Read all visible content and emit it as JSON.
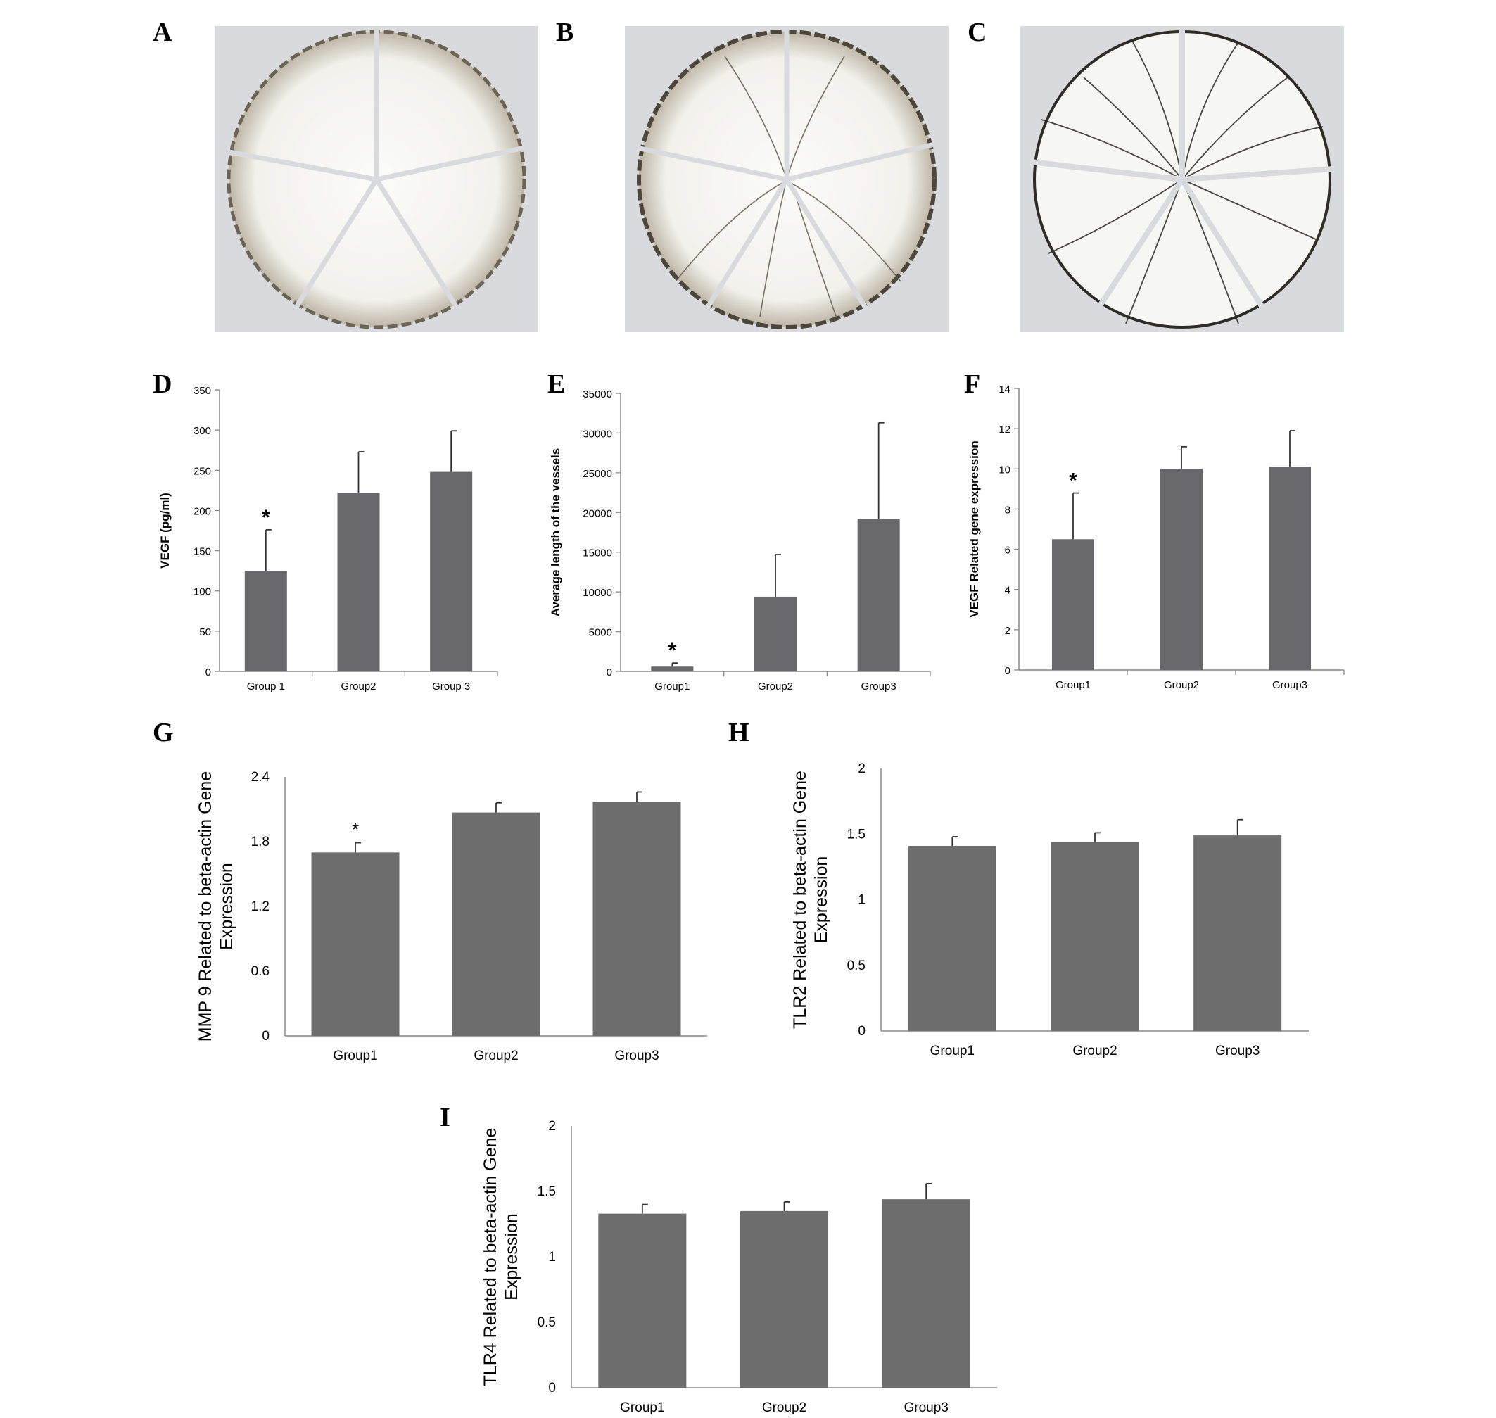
{
  "panels": {
    "A": {
      "letter": "A"
    },
    "B": {
      "letter": "B"
    },
    "C": {
      "letter": "C"
    }
  },
  "chart_data": [
    {
      "id": "D",
      "letter": "D",
      "type": "bar",
      "categories": [
        "Group 1",
        "Group2",
        "Group 3"
      ],
      "values": [
        125,
        222,
        248
      ],
      "errors": [
        51,
        51,
        51
      ],
      "significance": [
        "*",
        "",
        ""
      ],
      "ylabel": "VEGF (pg/ml)",
      "ylim": [
        0,
        350
      ],
      "yticks": [
        0,
        50,
        100,
        150,
        200,
        250,
        300,
        350
      ],
      "tick_labels": [
        "0",
        "50",
        "100",
        "150",
        "200",
        "250",
        "300",
        "350"
      ],
      "bar_color": "#68676c",
      "grid": false
    },
    {
      "id": "E",
      "letter": "E",
      "type": "bar",
      "categories": [
        "Group1",
        "Group2",
        "Group3"
      ],
      "values": [
        600,
        9400,
        19200
      ],
      "errors": [
        450,
        5300,
        12100
      ],
      "significance": [
        "*",
        "",
        ""
      ],
      "ylabel": "Average length of the vessels",
      "ylim": [
        0,
        35000
      ],
      "yticks": [
        0,
        5000,
        10000,
        15000,
        20000,
        25000,
        30000,
        35000
      ],
      "tick_labels": [
        "0",
        "5000",
        "10000",
        "15000",
        "20000",
        "25000",
        "30000",
        "35000"
      ],
      "bar_color": "#68676c",
      "grid": false
    },
    {
      "id": "F",
      "letter": "F",
      "type": "bar",
      "categories": [
        "Group1",
        "Group2",
        "Group3"
      ],
      "values": [
        6.5,
        10.0,
        10.1
      ],
      "errors": [
        2.3,
        1.1,
        1.8
      ],
      "significance": [
        "*",
        "",
        ""
      ],
      "ylabel": "VEGF Related gene expression",
      "ylim": [
        0,
        14
      ],
      "yticks": [
        0,
        2,
        4,
        6,
        8,
        10,
        12,
        14
      ],
      "tick_labels": [
        "0",
        "2",
        "4",
        "6",
        "8",
        "10",
        "12",
        "14"
      ],
      "bar_color": "#68676c",
      "grid": false
    },
    {
      "id": "G",
      "letter": "G",
      "type": "bar",
      "categories": [
        "Group1",
        "Group2",
        "Group3"
      ],
      "values": [
        1.7,
        2.07,
        2.17
      ],
      "errors": [
        0.09,
        0.09,
        0.09
      ],
      "significance": [
        "*",
        "",
        ""
      ],
      "ylabel": "MMP 9 Related to beta-actin Gene Expression",
      "ylim": [
        0,
        2.4
      ],
      "yticks": [
        0,
        0.6,
        1.2,
        1.8,
        2.4
      ],
      "tick_labels": [
        "0",
        "0.6",
        "1.2",
        "1.8",
        "2.4"
      ],
      "bar_color": "#6d6d6d",
      "grid": false
    },
    {
      "id": "H",
      "letter": "H",
      "type": "bar",
      "categories": [
        "Group1",
        "Group2",
        "Group3"
      ],
      "values": [
        1.41,
        1.44,
        1.49
      ],
      "errors": [
        0.07,
        0.07,
        0.12
      ],
      "significance": [
        "",
        "",
        ""
      ],
      "ylabel": "TLR2 Related to beta-actin Gene Expression",
      "ylim": [
        0,
        2
      ],
      "yticks": [
        0,
        0.5,
        1,
        1.5,
        2
      ],
      "tick_labels": [
        "0",
        "0.5",
        "1",
        "1.5",
        "2"
      ],
      "bar_color": "#6d6d6d",
      "grid": false
    },
    {
      "id": "I",
      "letter": "I",
      "type": "bar",
      "categories": [
        "Group1",
        "Group2",
        "Group3"
      ],
      "values": [
        1.33,
        1.35,
        1.44
      ],
      "errors": [
        0.07,
        0.07,
        0.12
      ],
      "significance": [
        "",
        "",
        ""
      ],
      "ylabel": "TLR4 Related to beta-actin Gene Expression",
      "ylim": [
        0,
        2
      ],
      "yticks": [
        0,
        0.5,
        1,
        1.5,
        2
      ],
      "tick_labels": [
        "0",
        "0.5",
        "1",
        "1.5",
        "2"
      ],
      "bar_color": "#6d6d6d",
      "grid": false
    }
  ]
}
